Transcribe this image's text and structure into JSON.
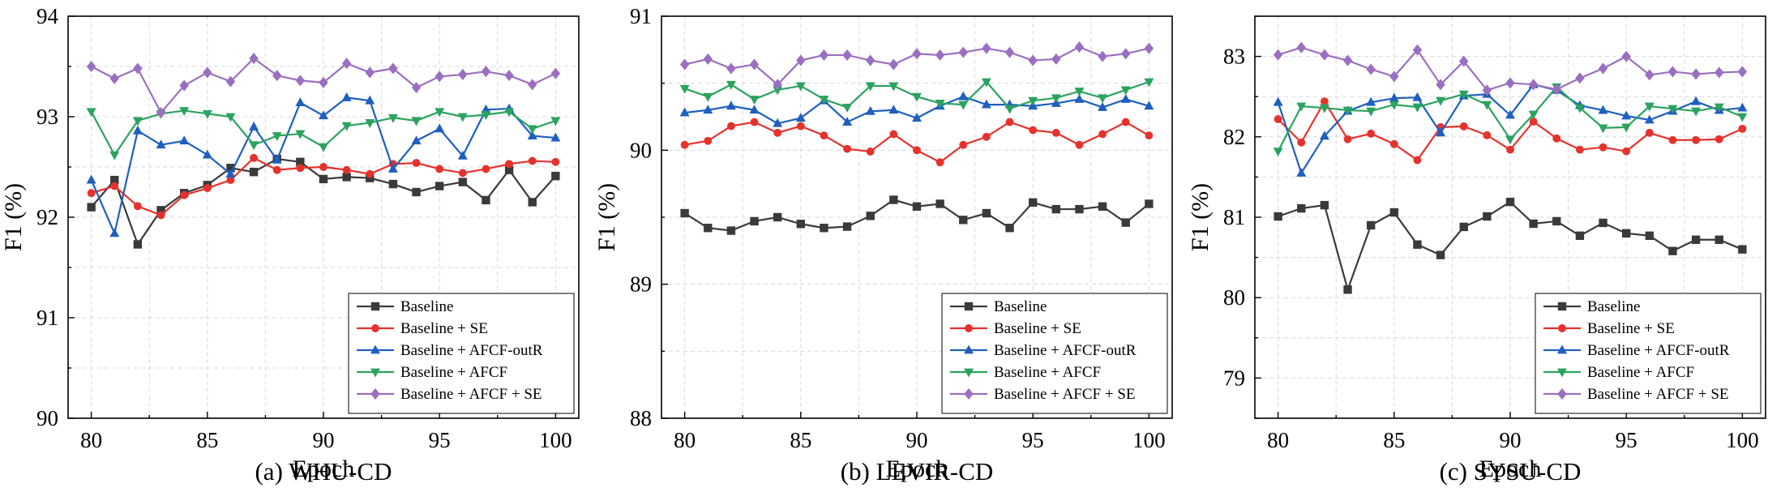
{
  "colors": {
    "Baseline": "#3a3a3a",
    "Baseline + SE": "#e5322d",
    "Baseline + AFCF-outR": "#1f5fbf",
    "Baseline + AFCF": "#2ca25f",
    "Baseline + AFCF + SE": "#9b6fc0"
  },
  "markers": {
    "Baseline": "square",
    "Baseline + SE": "circle",
    "Baseline + AFCF-outR": "triangle-up",
    "Baseline + AFCF": "triangle-down",
    "Baseline + AFCF + SE": "diamond"
  },
  "chart_data": [
    {
      "type": "line",
      "caption": "(a) WHU-CD",
      "xlabel": "Epoch",
      "ylabel": "F1 (%)",
      "xlim": [
        79,
        101
      ],
      "ylim": [
        90,
        94
      ],
      "xticks": [
        80,
        85,
        90,
        95,
        100
      ],
      "yticks": [
        90,
        91,
        92,
        93,
        94
      ],
      "grid": true,
      "legend_position": "bottom-right",
      "x": [
        80,
        81,
        82,
        83,
        84,
        85,
        86,
        87,
        88,
        89,
        90,
        91,
        92,
        93,
        94,
        95,
        96,
        97,
        98,
        99,
        100
      ],
      "series": [
        {
          "name": "Baseline",
          "values": [
            92.1,
            92.37,
            91.73,
            92.07,
            92.24,
            92.32,
            92.49,
            92.45,
            92.58,
            92.55,
            92.38,
            92.4,
            92.39,
            92.33,
            92.25,
            92.31,
            92.35,
            92.17,
            92.47,
            92.15,
            92.41
          ]
        },
        {
          "name": "Baseline + SE",
          "values": [
            92.24,
            92.31,
            92.11,
            92.02,
            92.22,
            92.29,
            92.37,
            92.59,
            92.47,
            92.49,
            92.5,
            92.47,
            92.43,
            92.53,
            92.54,
            92.48,
            92.44,
            92.48,
            92.53,
            92.56,
            92.55
          ]
        },
        {
          "name": "Baseline + AFCF-outR",
          "values": [
            92.37,
            91.84,
            92.86,
            92.72,
            92.76,
            92.62,
            92.43,
            92.9,
            92.57,
            93.14,
            93.01,
            93.19,
            93.16,
            92.48,
            92.76,
            92.88,
            92.61,
            93.07,
            93.08,
            92.81,
            92.79
          ]
        },
        {
          "name": "Baseline + AFCF",
          "values": [
            93.05,
            92.62,
            92.96,
            93.03,
            93.06,
            93.03,
            93.0,
            92.72,
            92.81,
            92.83,
            92.7,
            92.91,
            92.94,
            92.99,
            92.96,
            93.05,
            93.0,
            93.02,
            93.05,
            92.88,
            92.96
          ]
        },
        {
          "name": "Baseline + AFCF + SE",
          "values": [
            93.5,
            93.38,
            93.48,
            93.04,
            93.31,
            93.44,
            93.35,
            93.58,
            93.41,
            93.36,
            93.34,
            93.53,
            93.44,
            93.48,
            93.29,
            93.4,
            93.42,
            93.45,
            93.41,
            93.32,
            93.43
          ]
        }
      ]
    },
    {
      "type": "line",
      "caption": "(b) LEVIR-CD",
      "xlabel": "Epoch",
      "ylabel": "F1 (%)",
      "xlim": [
        79,
        101
      ],
      "ylim": [
        88,
        91
      ],
      "xticks": [
        80,
        85,
        90,
        95,
        100
      ],
      "yticks": [
        88,
        89,
        90,
        91
      ],
      "grid": true,
      "legend_position": "bottom-right",
      "x": [
        80,
        81,
        82,
        83,
        84,
        85,
        86,
        87,
        88,
        89,
        90,
        91,
        92,
        93,
        94,
        95,
        96,
        97,
        98,
        99,
        100
      ],
      "series": [
        {
          "name": "Baseline",
          "values": [
            89.53,
            89.42,
            89.4,
            89.47,
            89.5,
            89.45,
            89.42,
            89.43,
            89.51,
            89.63,
            89.58,
            89.6,
            89.48,
            89.53,
            89.42,
            89.61,
            89.56,
            89.56,
            89.58,
            89.46,
            89.6
          ]
        },
        {
          "name": "Baseline + SE",
          "values": [
            90.04,
            90.07,
            90.18,
            90.21,
            90.13,
            90.18,
            90.11,
            90.01,
            89.99,
            90.12,
            90.0,
            89.91,
            90.04,
            90.1,
            90.21,
            90.15,
            90.13,
            90.04,
            90.12,
            90.21,
            90.11
          ]
        },
        {
          "name": "Baseline + AFCF-outR",
          "values": [
            90.28,
            90.3,
            90.33,
            90.3,
            90.2,
            90.24,
            90.37,
            90.21,
            90.29,
            90.3,
            90.24,
            90.33,
            90.4,
            90.34,
            90.34,
            90.33,
            90.35,
            90.38,
            90.32,
            90.38,
            90.33
          ]
        },
        {
          "name": "Baseline + AFCF",
          "values": [
            90.46,
            90.4,
            90.49,
            90.38,
            90.45,
            90.48,
            90.38,
            90.32,
            90.48,
            90.48,
            90.4,
            90.35,
            90.34,
            90.51,
            90.31,
            90.37,
            90.39,
            90.44,
            90.39,
            90.45,
            90.51
          ]
        },
        {
          "name": "Baseline + AFCF + SE",
          "values": [
            90.64,
            90.68,
            90.61,
            90.64,
            90.49,
            90.67,
            90.71,
            90.71,
            90.67,
            90.64,
            90.72,
            90.71,
            90.73,
            90.76,
            90.73,
            90.67,
            90.68,
            90.77,
            90.7,
            90.72,
            90.76
          ]
        }
      ]
    },
    {
      "type": "line",
      "caption": "(c) SYSU-CD",
      "xlabel": "Epoch",
      "ylabel": "F1 (%)",
      "xlim": [
        79,
        101
      ],
      "ylim": [
        78.5,
        83.5
      ],
      "xticks": [
        80,
        85,
        90,
        95,
        100
      ],
      "yticks": [
        79,
        80,
        81,
        82,
        83
      ],
      "grid": true,
      "legend_position": "bottom-right",
      "x": [
        80,
        81,
        82,
        83,
        84,
        85,
        86,
        87,
        88,
        89,
        90,
        91,
        92,
        93,
        94,
        95,
        96,
        97,
        98,
        99,
        100
      ],
      "series": [
        {
          "name": "Baseline",
          "values": [
            81.01,
            81.11,
            81.15,
            80.1,
            80.9,
            81.06,
            80.66,
            80.53,
            80.88,
            81.01,
            81.19,
            80.92,
            80.95,
            80.77,
            80.93,
            80.8,
            80.77,
            80.58,
            80.72,
            80.72,
            80.6
          ]
        },
        {
          "name": "Baseline + SE",
          "values": [
            82.22,
            81.93,
            82.44,
            81.97,
            82.04,
            81.91,
            81.71,
            82.12,
            82.13,
            82.02,
            81.84,
            82.19,
            81.98,
            81.84,
            81.87,
            81.82,
            82.05,
            81.96,
            81.96,
            81.97,
            82.1
          ]
        },
        {
          "name": "Baseline + AFCF-outR",
          "values": [
            82.43,
            81.55,
            82.01,
            82.32,
            82.43,
            82.48,
            82.49,
            82.05,
            82.51,
            82.53,
            82.27,
            82.65,
            82.58,
            82.39,
            82.33,
            82.26,
            82.21,
            82.32,
            82.44,
            82.33,
            82.36
          ]
        },
        {
          "name": "Baseline + AFCF",
          "values": [
            81.82,
            82.38,
            82.36,
            82.33,
            82.32,
            82.4,
            82.37,
            82.45,
            82.53,
            82.4,
            81.97,
            82.28,
            82.62,
            82.36,
            82.11,
            82.12,
            82.38,
            82.35,
            82.32,
            82.37,
            82.25
          ]
        },
        {
          "name": "Baseline + AFCF + SE",
          "values": [
            83.02,
            83.11,
            83.02,
            82.95,
            82.84,
            82.75,
            83.08,
            82.65,
            82.94,
            82.58,
            82.67,
            82.65,
            82.59,
            82.73,
            82.85,
            83.0,
            82.77,
            82.81,
            82.78,
            82.8,
            82.81
          ]
        }
      ]
    }
  ]
}
